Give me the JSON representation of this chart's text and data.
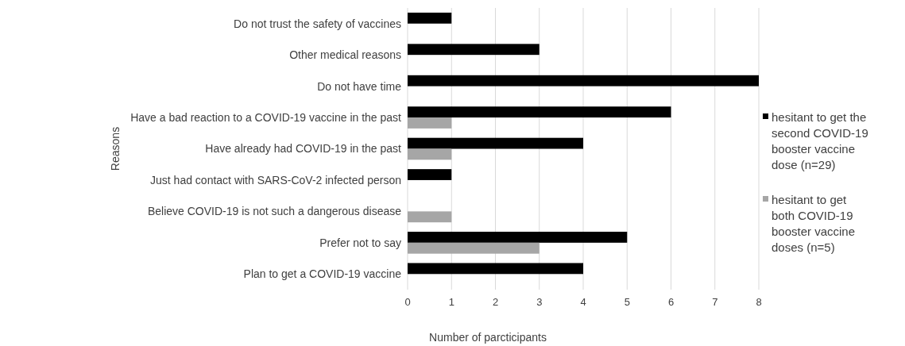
{
  "chart_data": {
    "type": "bar",
    "orientation": "horizontal",
    "ylabel": "Reasons",
    "xlabel": "Number  of parcticipants",
    "categories": [
      "Do not trust the safety of vaccines",
      "Other medical reasons",
      "Do not have time",
      "Have a bad reaction to a COVID-19 vaccine in the past",
      "Have already had COVID-19 in the past",
      "Just had contact with SARS-CoV-2 infected person",
      "Believe COVID-19 is not such a dangerous disease",
      "Prefer not to say",
      "Plan to get a COVID-19 vaccine"
    ],
    "series": [
      {
        "name": "hesitant to get the second COVID-19 booster vaccine dose (n=29)",
        "color": "#000000",
        "values": [
          1,
          3,
          8,
          6,
          4,
          1,
          null,
          5,
          4
        ]
      },
      {
        "name": "hesitant to get both COVID-19 booster vaccine doses (n=5)",
        "color": "#a6a6a6",
        "values": [
          null,
          null,
          null,
          1,
          1,
          null,
          1,
          3,
          null
        ]
      }
    ],
    "xlim": [
      0,
      8
    ],
    "xticks": [
      0,
      1,
      2,
      3,
      4,
      5,
      6,
      7,
      8
    ],
    "grid": "x",
    "legend": "right"
  }
}
